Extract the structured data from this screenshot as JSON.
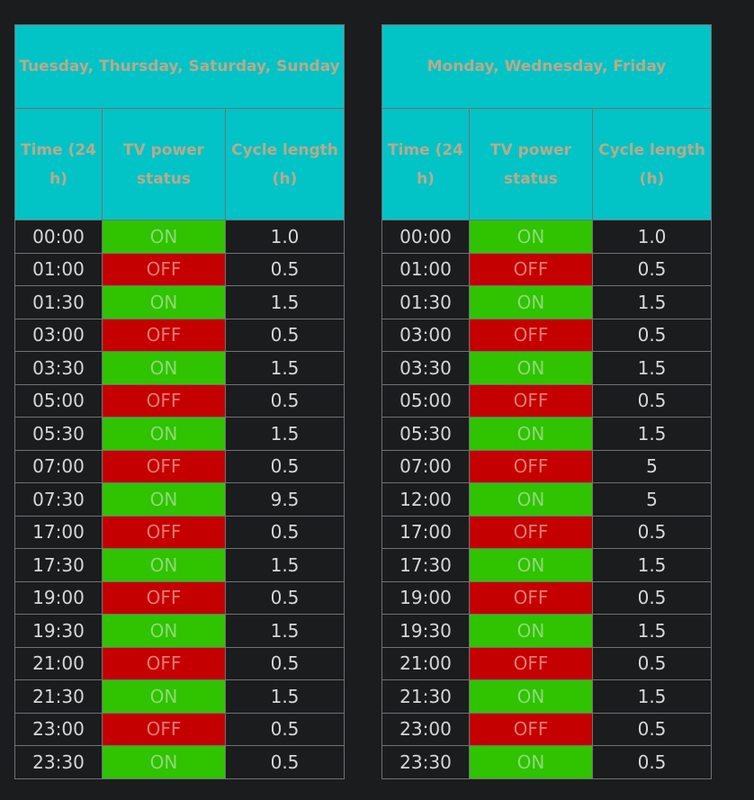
{
  "headers": {
    "time": "Time (24 h)",
    "status": "TV power status",
    "cycle": "Cycle length (h)"
  },
  "tables": [
    {
      "title": "Tuesday, Thursday, Saturday, Sunday",
      "rows": [
        {
          "time": "00:00",
          "status": "ON",
          "cycle": "1.0"
        },
        {
          "time": "01:00",
          "status": "OFF",
          "cycle": "0.5"
        },
        {
          "time": "01:30",
          "status": "ON",
          "cycle": "1.5"
        },
        {
          "time": "03:00",
          "status": "OFF",
          "cycle": "0.5"
        },
        {
          "time": "03:30",
          "status": "ON",
          "cycle": "1.5"
        },
        {
          "time": "05:00",
          "status": "OFF",
          "cycle": "0.5"
        },
        {
          "time": "05:30",
          "status": "ON",
          "cycle": "1.5"
        },
        {
          "time": "07:00",
          "status": "OFF",
          "cycle": "0.5"
        },
        {
          "time": "07:30",
          "status": "ON",
          "cycle": "9.5"
        },
        {
          "time": "17:00",
          "status": "OFF",
          "cycle": "0.5"
        },
        {
          "time": "17:30",
          "status": "ON",
          "cycle": "1.5"
        },
        {
          "time": "19:00",
          "status": "OFF",
          "cycle": "0.5"
        },
        {
          "time": "19:30",
          "status": "ON",
          "cycle": "1.5"
        },
        {
          "time": "21:00",
          "status": "OFF",
          "cycle": "0.5"
        },
        {
          "time": "21:30",
          "status": "ON",
          "cycle": "1.5"
        },
        {
          "time": "23:00",
          "status": "OFF",
          "cycle": "0.5"
        },
        {
          "time": "23:30",
          "status": "ON",
          "cycle": "0.5"
        }
      ]
    },
    {
      "title": "Monday, Wednesday, Friday",
      "rows": [
        {
          "time": "00:00",
          "status": "ON",
          "cycle": "1.0"
        },
        {
          "time": "01:00",
          "status": "OFF",
          "cycle": "0.5"
        },
        {
          "time": "01:30",
          "status": "ON",
          "cycle": "1.5"
        },
        {
          "time": "03:00",
          "status": "OFF",
          "cycle": "0.5"
        },
        {
          "time": "03:30",
          "status": "ON",
          "cycle": "1.5"
        },
        {
          "time": "05:00",
          "status": "OFF",
          "cycle": "0.5"
        },
        {
          "time": "05:30",
          "status": "ON",
          "cycle": "1.5"
        },
        {
          "time": "07:00",
          "status": "OFF",
          "cycle": "5"
        },
        {
          "time": "12:00",
          "status": "ON",
          "cycle": "5"
        },
        {
          "time": "17:00",
          "status": "OFF",
          "cycle": "0.5"
        },
        {
          "time": "17:30",
          "status": "ON",
          "cycle": "1.5"
        },
        {
          "time": "19:00",
          "status": "OFF",
          "cycle": "0.5"
        },
        {
          "time": "19:30",
          "status": "ON",
          "cycle": "1.5"
        },
        {
          "time": "21:00",
          "status": "OFF",
          "cycle": "0.5"
        },
        {
          "time": "21:30",
          "status": "ON",
          "cycle": "1.5"
        },
        {
          "time": "23:00",
          "status": "OFF",
          "cycle": "0.5"
        },
        {
          "time": "23:30",
          "status": "ON",
          "cycle": "0.5"
        }
      ]
    }
  ],
  "colors": {
    "header_bg": "#02c3c6",
    "header_text": "#b9aa8a",
    "on_bg": "#2fc300",
    "off_bg": "#c50000",
    "page_bg": "#1b1c1e"
  }
}
